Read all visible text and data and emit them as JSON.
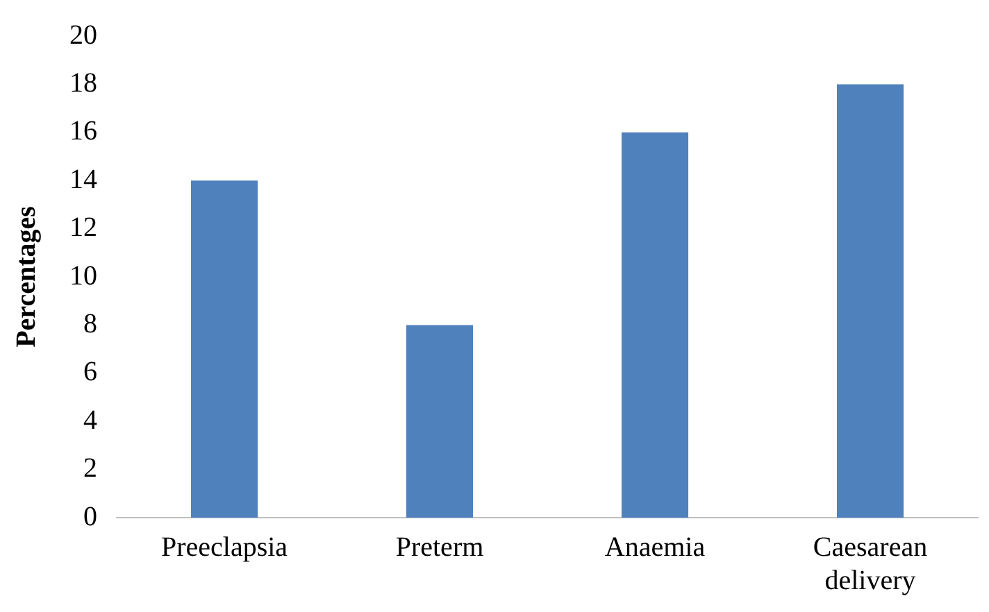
{
  "chart_data": {
    "type": "bar",
    "ylabel": "Percentages",
    "categories": [
      "Preeclapsia",
      "Preterm",
      "Anaemia",
      "Caesarean delivery"
    ],
    "values": [
      14,
      8,
      16,
      18
    ],
    "color": "#4f81bd",
    "ylim": [
      0,
      20
    ],
    "yticks": [
      0,
      2,
      4,
      6,
      8,
      10,
      12,
      14,
      16,
      18,
      20
    ],
    "grid": false,
    "legend": false
  }
}
